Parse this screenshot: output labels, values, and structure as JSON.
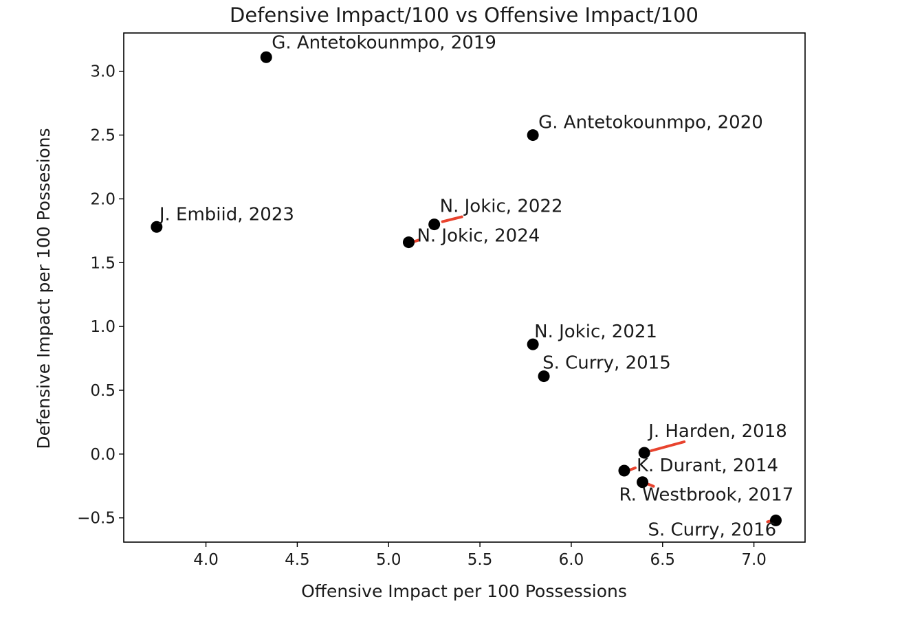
{
  "chart_data": {
    "type": "scatter",
    "title": "Defensive Impact/100 vs Offensive Impact/100",
    "xlabel": "Offensive Impact per 100 Possessions",
    "ylabel": "Defensive Impact per 100 Possesions",
    "xlim": [
      3.55,
      7.28
    ],
    "ylim": [
      -0.69,
      3.3
    ],
    "xticks": [
      4.0,
      4.5,
      5.0,
      5.5,
      6.0,
      6.5,
      7.0
    ],
    "xtick_labels": [
      "4.0",
      "4.5",
      "5.0",
      "5.5",
      "6.0",
      "6.5",
      "7.0"
    ],
    "yticks": [
      -0.5,
      0.0,
      0.5,
      1.0,
      1.5,
      2.0,
      2.5,
      3.0
    ],
    "ytick_labels": [
      "−0.5",
      "0.0",
      "0.5",
      "1.0",
      "1.5",
      "2.0",
      "2.5",
      "3.0"
    ],
    "grid": false,
    "marker_color": "#000000",
    "leader_color": "#e8432e",
    "points": [
      {
        "label": "G. Antetokounmpo, 2019",
        "x": 4.33,
        "y": 3.11
      },
      {
        "label": "G. Antetokounmpo, 2020",
        "x": 5.79,
        "y": 2.5
      },
      {
        "label": "J. Embiid, 2023",
        "x": 3.73,
        "y": 1.78
      },
      {
        "label": "N. Jokic, 2022",
        "x": 5.25,
        "y": 1.8
      },
      {
        "label": "N. Jokic, 2024",
        "x": 5.11,
        "y": 1.66
      },
      {
        "label": "N. Jokic, 2021",
        "x": 5.79,
        "y": 0.86
      },
      {
        "label": "S. Curry, 2015",
        "x": 5.85,
        "y": 0.61
      },
      {
        "label": "J. Harden, 2018",
        "x": 6.4,
        "y": 0.01
      },
      {
        "label": "K. Durant, 2014",
        "x": 6.29,
        "y": -0.13
      },
      {
        "label": "R. Westbrook, 2017",
        "x": 6.39,
        "y": -0.22
      },
      {
        "label": "S. Curry, 2016",
        "x": 7.12,
        "y": -0.52
      }
    ]
  }
}
